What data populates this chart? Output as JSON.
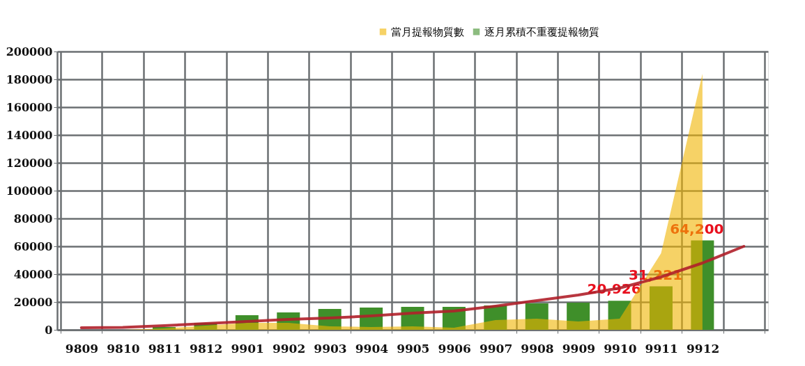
{
  "chart_data": {
    "type": "bar",
    "categories": [
      "9809",
      "9810",
      "9811",
      "9812",
      "9901",
      "9902",
      "9903",
      "9904",
      "9905",
      "9906",
      "9907",
      "9908",
      "9909",
      "9910",
      "9911",
      "9912",
      null
    ],
    "series": [
      {
        "name": "當月提報物質數",
        "type": "area",
        "color": "#f0b400",
        "values": [
          0,
          0,
          1000,
          3000,
          5000,
          5000,
          2500,
          2000,
          2500,
          1500,
          7000,
          8000,
          6000,
          8000,
          55000,
          184000,
          null
        ]
      },
      {
        "name": "逐月累積不重覆提報物質",
        "color": "#3f8f2a",
        "values": [
          0,
          0,
          2000,
          5000,
          10500,
          12500,
          15000,
          16000,
          16500,
          16500,
          17500,
          19000,
          19500,
          20926,
          31221,
          64200,
          null
        ],
        "value_labels": [
          null,
          null,
          null,
          null,
          null,
          null,
          null,
          null,
          null,
          null,
          null,
          null,
          null,
          "20,926",
          "31,221",
          "64,200",
          null
        ]
      },
      {
        "type": "line",
        "color": "#b0202a",
        "values": [
          1500,
          1800,
          3000,
          4500,
          6000,
          7500,
          8500,
          10000,
          12000,
          13500,
          17000,
          21000,
          25000,
          30000,
          38000,
          48000,
          60000
        ]
      }
    ],
    "ylim": [
      0,
      200000
    ],
    "yticks": [
      0,
      20000,
      40000,
      60000,
      80000,
      100000,
      120000,
      140000,
      160000,
      180000,
      200000
    ],
    "grid": true,
    "legend": "top right"
  }
}
